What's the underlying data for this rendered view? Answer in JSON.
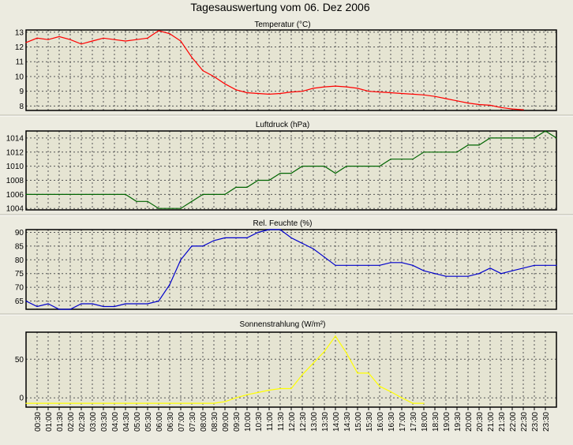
{
  "page_title": "Tagesauswertung vom 06. Dez 2006",
  "colors": {
    "background": "#ecebe0",
    "plot_background": "#e5e4d2",
    "title": "#1f1fb8",
    "temperature": "#ff0000",
    "pressure": "#006400",
    "humidity": "#0000cc",
    "radiation": "#ffff00"
  },
  "time_ticks": [
    "00:30",
    "01:00",
    "01:30",
    "02:00",
    "02:30",
    "03:00",
    "03:30",
    "04:00",
    "04:30",
    "05:00",
    "05:30",
    "06:00",
    "06:30",
    "07:00",
    "07:30",
    "08:00",
    "08:30",
    "09:00",
    "09:30",
    "10:00",
    "10:30",
    "11:00",
    "11:30",
    "12:00",
    "12:30",
    "13:00",
    "13:30",
    "14:00",
    "14:30",
    "15:00",
    "15:30",
    "16:00",
    "16:30",
    "17:00",
    "17:30",
    "18:00",
    "18:30",
    "19:00",
    "19:30",
    "20:00",
    "20:30",
    "21:00",
    "21:30",
    "22:00",
    "22:30",
    "23:00",
    "23:30"
  ],
  "chart_data": [
    {
      "type": "line",
      "title": "Temperatur (°C)",
      "x_unit": "hours",
      "xlim": [
        0,
        24
      ],
      "ylim": [
        7.7,
        13.15
      ],
      "yticks": [
        8,
        9,
        10,
        11,
        12,
        13
      ],
      "grid": true,
      "series": [
        {
          "x": [
            0,
            0.5,
            1,
            1.5,
            2,
            2.5,
            3,
            3.5,
            4,
            4.5,
            5,
            5.5,
            6,
            6.5,
            7,
            7.5,
            8,
            8.5,
            9,
            9.5,
            10,
            10.5,
            11,
            11.5,
            12,
            12.5,
            13,
            13.5,
            14,
            14.5,
            15,
            15.5,
            16,
            16.5,
            17,
            17.5,
            18,
            18.5,
            19,
            19.5,
            20,
            20.5,
            21,
            21.5,
            22,
            22.5
          ],
          "y": [
            12.3,
            12.6,
            12.5,
            12.7,
            12.5,
            12.2,
            12.4,
            12.6,
            12.5,
            12.4,
            12.5,
            12.6,
            13.1,
            12.9,
            12.4,
            11.3,
            10.4,
            10.0,
            9.5,
            9.1,
            8.9,
            8.85,
            8.8,
            8.85,
            8.95,
            9.0,
            9.2,
            9.3,
            9.35,
            9.3,
            9.2,
            9.0,
            8.95,
            8.9,
            8.85,
            8.8,
            8.75,
            8.65,
            8.5,
            8.35,
            8.2,
            8.1,
            8.05,
            7.9,
            7.8,
            7.75
          ]
        }
      ]
    },
    {
      "type": "line",
      "title": "Luftdruck (hPa)",
      "x_unit": "hours",
      "xlim": [
        0,
        24
      ],
      "ylim": [
        1003.8,
        1015
      ],
      "yticks": [
        1004,
        1006,
        1008,
        1010,
        1012,
        1014
      ],
      "grid": true,
      "series": [
        {
          "x": [
            0,
            4.5,
            5,
            5.5,
            6,
            6.5,
            7,
            7.5,
            8,
            8.5,
            9,
            9.5,
            10,
            10.5,
            11,
            11.5,
            12,
            12.5,
            13,
            13.5,
            14,
            14.5,
            15,
            15.5,
            16,
            16.5,
            17,
            17.5,
            18,
            18.5,
            19,
            19.5,
            20,
            20.5,
            21,
            21.5,
            22,
            22.5,
            23,
            23.5,
            24
          ],
          "y": [
            1006,
            1006,
            1005,
            1005,
            1004,
            1004,
            1004,
            1005,
            1006,
            1006,
            1006,
            1007,
            1007,
            1008,
            1008,
            1009,
            1009,
            1010,
            1010,
            1010,
            1009,
            1010,
            1010,
            1010,
            1010,
            1011,
            1011,
            1011,
            1012,
            1012,
            1012,
            1012,
            1013,
            1013,
            1014,
            1014,
            1014,
            1014,
            1014,
            1015,
            1014
          ]
        }
      ]
    },
    {
      "type": "line",
      "title": "Rel. Feuchte (%)",
      "x_unit": "hours",
      "xlim": [
        0,
        24
      ],
      "ylim": [
        62,
        91
      ],
      "yticks": [
        65,
        70,
        75,
        80,
        85,
        90
      ],
      "grid": true,
      "series": [
        {
          "x": [
            0,
            0.5,
            1,
            1.5,
            2,
            2.5,
            3,
            3.5,
            4,
            4.5,
            5,
            5.5,
            6,
            6.5,
            7,
            7.5,
            8,
            8.5,
            9,
            9.5,
            10,
            10.5,
            11,
            11.5,
            12,
            12.5,
            13,
            13.5,
            14,
            14.5,
            15,
            15.5,
            16,
            16.5,
            17,
            17.5,
            18,
            18.5,
            19,
            19.5,
            20,
            20.5,
            21,
            21.5,
            22,
            22.5,
            23,
            23.5,
            24
          ],
          "y": [
            65,
            63,
            64,
            62,
            62,
            64,
            64,
            63,
            63,
            64,
            64,
            64,
            65,
            71,
            80,
            85,
            85,
            87,
            88,
            88,
            88,
            90,
            91,
            91,
            88,
            86,
            84,
            81,
            78,
            78,
            78,
            78,
            78,
            79,
            79,
            78,
            76,
            75,
            74,
            74,
            74,
            75,
            77,
            75,
            76,
            77,
            78,
            78,
            78
          ]
        }
      ]
    },
    {
      "type": "line",
      "title": "Sonnenstrahlung (W/m²)",
      "x_unit": "hours",
      "xlim": [
        0,
        24
      ],
      "ylim": [
        -12,
        85
      ],
      "yticks": [
        0,
        50
      ],
      "grid": true,
      "series": [
        {
          "x": [
            0,
            0.5,
            1,
            8,
            8.5,
            9,
            9.5,
            10,
            10.5,
            11,
            11.5,
            12,
            12.5,
            13,
            13.5,
            14,
            14.5,
            15,
            15.5,
            16,
            16.5,
            17,
            17.5,
            18
          ],
          "y": [
            -7,
            -7,
            -7,
            -7,
            -7,
            -5,
            0,
            4,
            7,
            10,
            12,
            12,
            30,
            45,
            60,
            80,
            58,
            32,
            32,
            15,
            8,
            0,
            -7,
            -7
          ]
        }
      ]
    }
  ]
}
